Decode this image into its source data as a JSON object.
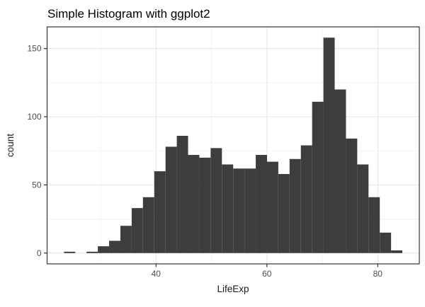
{
  "chart": {
    "title": "Simple Histogram with ggplot2",
    "xlabel": "LifeExp",
    "ylabel": "count"
  },
  "chart_data": {
    "type": "bar",
    "subtype": "histogram",
    "title": "Simple Histogram with ggplot2",
    "xlabel": "LifeExp",
    "ylabel": "count",
    "bin_start": 23.4,
    "bin_width": 2.0346,
    "counts": [
      1,
      0,
      1,
      5,
      9,
      20,
      33,
      41,
      60,
      78,
      86,
      72,
      70,
      77,
      65,
      62,
      62,
      72,
      67,
      58,
      69,
      79,
      111,
      158,
      120,
      84,
      65,
      41,
      15,
      2
    ],
    "x_ticks": [
      40,
      60,
      80
    ],
    "x_tick_labels": [
      "40",
      "60",
      "80"
    ],
    "x_minor_ticks": [
      30,
      50,
      70
    ],
    "y_ticks": [
      0,
      50,
      100,
      150
    ],
    "y_tick_labels": [
      "0",
      "50",
      "100",
      "150"
    ],
    "y_minor_ticks": [
      25,
      75,
      125
    ],
    "x_range": [
      20.35,
      87.5
    ],
    "y_range": [
      -7.9,
      165.9
    ],
    "grid": true,
    "legend_position": "none",
    "colors": {
      "bar_fill": "#3D3D3D",
      "panel_border": "#333333",
      "grid_major": "#E4E4E4",
      "grid_minor": "#F1F1F1",
      "tick_mark": "#333333",
      "axis_text": "#4D4D4D",
      "title_text": "#000000",
      "background": "#FFFFFF"
    }
  }
}
